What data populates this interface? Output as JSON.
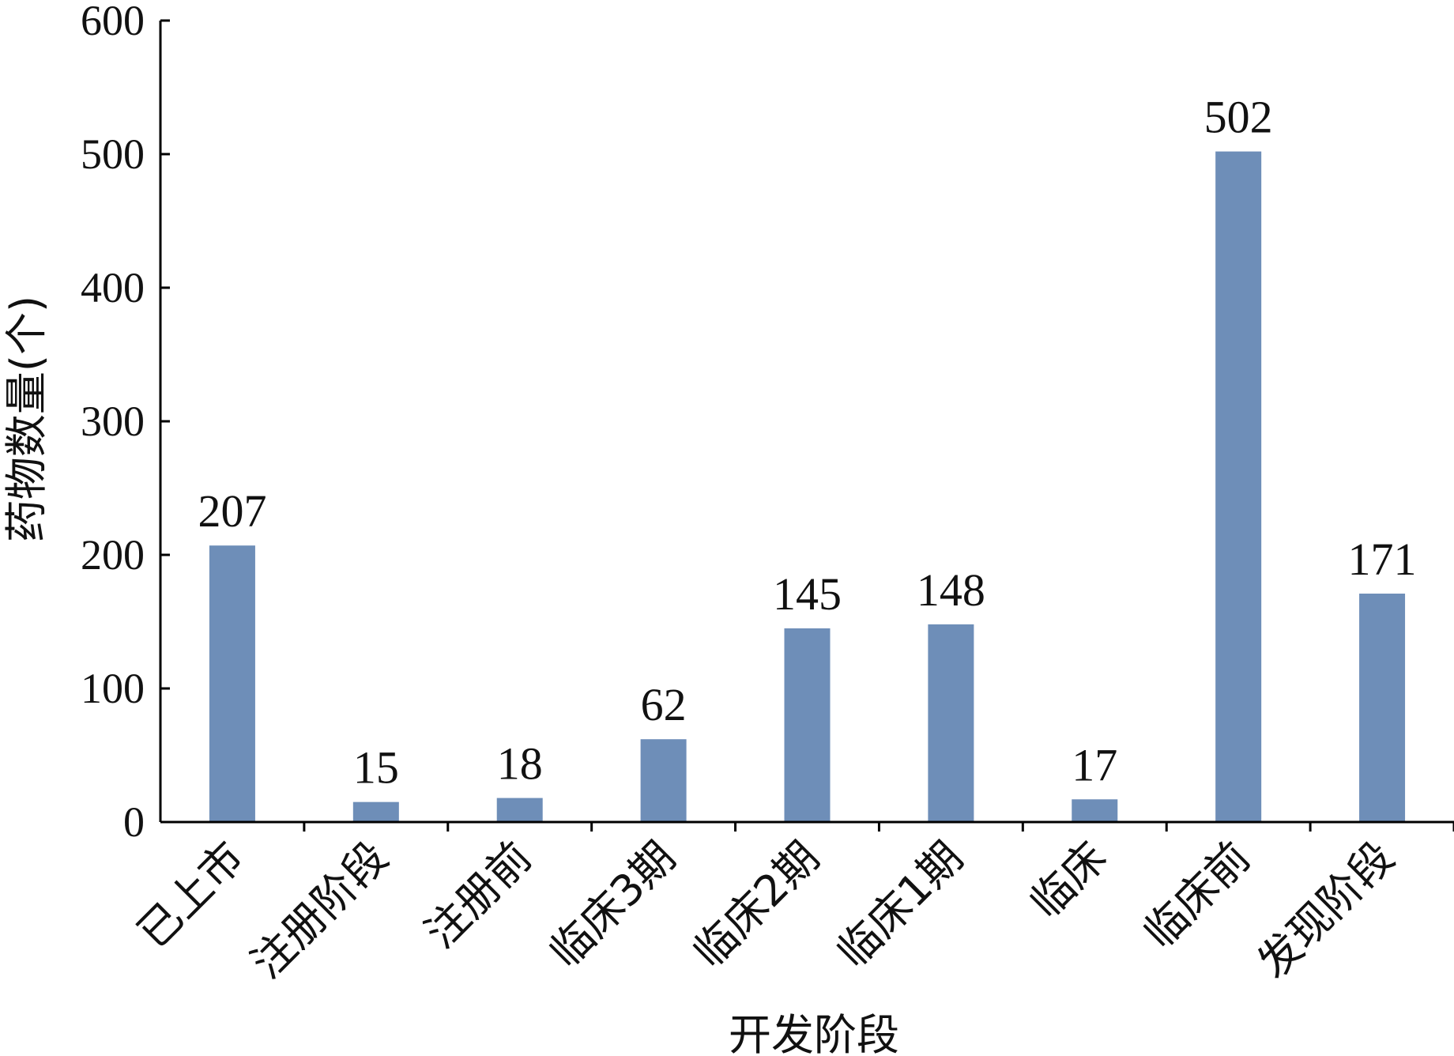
{
  "chart_data": {
    "type": "bar",
    "categories": [
      "已上市",
      "注册阶段",
      "注册前",
      "临床3期",
      "临床2期",
      "临床1期",
      "临床",
      "临床前",
      "发现阶段"
    ],
    "values": [
      207,
      15,
      18,
      62,
      145,
      148,
      17,
      502,
      171
    ],
    "data_labels": [
      "207",
      "15",
      "18",
      "62",
      "145",
      "148",
      "17",
      "502",
      "171"
    ],
    "xlabel": "开发阶段",
    "ylabel": "药物数量(个)",
    "ylim": [
      0,
      600
    ],
    "yticks": [
      0,
      100,
      200,
      300,
      400,
      500,
      600
    ],
    "ytick_labels": [
      "0",
      "100",
      "200",
      "300",
      "400",
      "500",
      "600"
    ],
    "bar_color": "#6E8EB8",
    "grid": false,
    "legend": "none"
  }
}
